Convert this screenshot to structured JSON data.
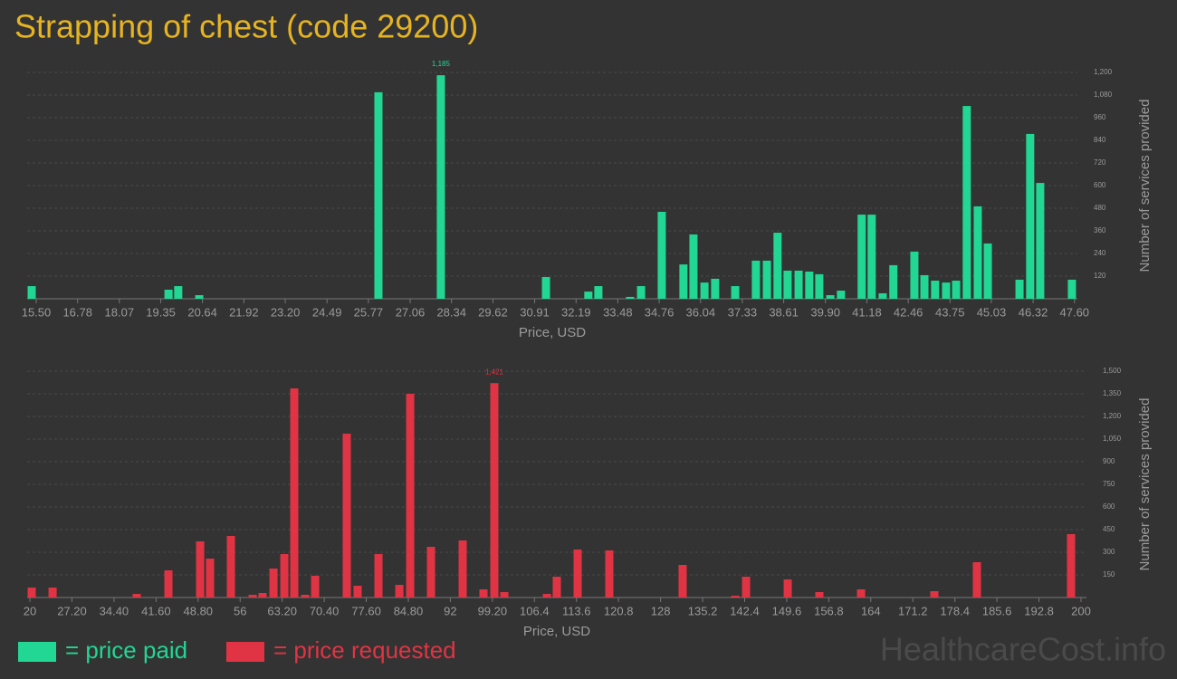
{
  "title": "Strapping of chest (code 29200)",
  "watermark": "HealthcareCost.info",
  "chart_data": [
    {
      "type": "bar",
      "xlabel": "Price, USD",
      "ylabel": "Number of services provided",
      "xlim": [
        15.22,
        47.69
      ],
      "ylim": [
        0,
        1200
      ],
      "xticks": [
        {
          "value": 15.5,
          "label": "15.50"
        },
        16.78,
        18.07,
        19.35,
        20.64,
        21.92,
        {
          "value": 23.2,
          "label": "23.20"
        },
        24.49,
        25.77,
        27.06,
        28.34,
        29.62,
        30.91,
        32.19,
        33.48,
        34.76,
        36.04,
        37.33,
        38.61,
        {
          "value": 39.9,
          "label": "39.90"
        },
        41.18,
        42.46,
        43.75,
        45.03,
        46.32,
        {
          "value": 47.6,
          "label": "47.60"
        }
      ],
      "yticks": [
        120,
        240,
        360,
        480,
        600,
        720,
        840,
        960,
        {
          "value": 1080,
          "label": "1,080"
        },
        {
          "value": 1200,
          "label": "1,200"
        }
      ],
      "grid": true,
      "x": [
        15.36,
        19.59,
        19.89,
        20.54,
        26.08,
        28.01,
        31.26,
        32.57,
        32.88,
        33.86,
        34.2,
        34.84,
        35.51,
        35.82,
        36.16,
        36.49,
        37.11,
        37.75,
        38.09,
        38.42,
        38.73,
        39.07,
        39.4,
        39.71,
        40.05,
        40.38,
        41.02,
        41.33,
        41.67,
        42.0,
        42.65,
        42.96,
        43.29,
        43.63,
        43.94,
        44.27,
        44.61,
        44.92,
        45.9,
        46.23,
        46.54,
        47.52
      ],
      "series": [
        {
          "name": "= price paid",
          "color": "#22d693",
          "values": [
            67,
            48,
            67,
            19,
            1095,
            1185,
            115,
            38,
            67,
            10,
            67,
            461,
            182,
            341,
            86,
            106,
            67,
            202,
            202,
            350,
            149,
            149,
            144,
            130,
            19,
            43,
            446,
            446,
            29,
            178,
            250,
            125,
            96,
            86,
            96,
            1022,
            490,
            293,
            101,
            874,
            614,
            101
          ],
          "value_labels": [
            null,
            null,
            null,
            null,
            null,
            "1,185",
            null,
            null,
            null,
            null,
            null,
            null,
            null,
            null,
            null,
            null,
            null,
            null,
            null,
            null,
            null,
            null,
            null,
            null,
            null,
            null,
            null,
            null,
            null,
            null,
            null,
            null,
            null,
            null,
            null,
            null,
            null,
            null,
            null,
            null,
            null,
            null
          ]
        }
      ]
    },
    {
      "type": "bar",
      "xlabel": "Price, USD",
      "ylabel": "Number of services provided",
      "xlim": [
        19.53,
        200.93
      ],
      "ylim": [
        0,
        1500
      ],
      "xticks": [
        20,
        {
          "value": 27.2,
          "label": "27.20"
        },
        {
          "value": 34.4,
          "label": "34.40"
        },
        {
          "value": 41.6,
          "label": "41.60"
        },
        {
          "value": 48.8,
          "label": "48.80"
        },
        56,
        {
          "value": 63.2,
          "label": "63.20"
        },
        {
          "value": 70.4,
          "label": "70.40"
        },
        {
          "value": 77.6,
          "label": "77.60"
        },
        {
          "value": 84.8,
          "label": "84.80"
        },
        92,
        {
          "value": 99.2,
          "label": "99.20"
        },
        106.4,
        113.6,
        120.8,
        128,
        135.2,
        142.4,
        149.6,
        156.8,
        164,
        171.2,
        178.4,
        185.6,
        192.8,
        200
      ],
      "yticks": [
        150,
        300,
        450,
        600,
        750,
        900,
        {
          "value": 1050,
          "label": "1,050"
        },
        {
          "value": 1200,
          "label": "1,200"
        },
        {
          "value": 1350,
          "label": "1,350"
        },
        {
          "value": 1500,
          "label": "1,500"
        }
      ],
      "grid": true,
      "x": [
        20.31,
        23.88,
        38.29,
        43.72,
        49.15,
        50.85,
        54.42,
        58.14,
        59.84,
        61.71,
        63.57,
        65.27,
        67.13,
        68.84,
        74.26,
        76.12,
        79.69,
        83.26,
        85.12,
        88.68,
        94.11,
        97.67,
        99.53,
        101.24,
        108.53,
        110.23,
        113.8,
        119.22,
        131.78,
        140.78,
        142.64,
        149.77,
        155.19,
        162.33,
        174.88,
        182.17,
        198.29
      ],
      "series": [
        {
          "name": "= price requested",
          "color": "#e03444",
          "values": [
            66,
            66,
            24,
            180,
            372,
            258,
            408,
            18,
            30,
            192,
            288,
            1386,
            18,
            144,
            1086,
            78,
            288,
            84,
            1350,
            336,
            378,
            54,
            1421,
            36,
            24,
            138,
            318,
            312,
            216,
            12,
            138,
            120,
            36,
            54,
            42,
            234,
            420
          ],
          "value_labels": [
            null,
            null,
            null,
            null,
            null,
            null,
            null,
            null,
            null,
            null,
            null,
            null,
            null,
            null,
            null,
            null,
            null,
            null,
            null,
            null,
            null,
            null,
            "1,421",
            null,
            null,
            null,
            null,
            null,
            null,
            null,
            null,
            null,
            null,
            null,
            null,
            null,
            null
          ]
        }
      ]
    }
  ]
}
